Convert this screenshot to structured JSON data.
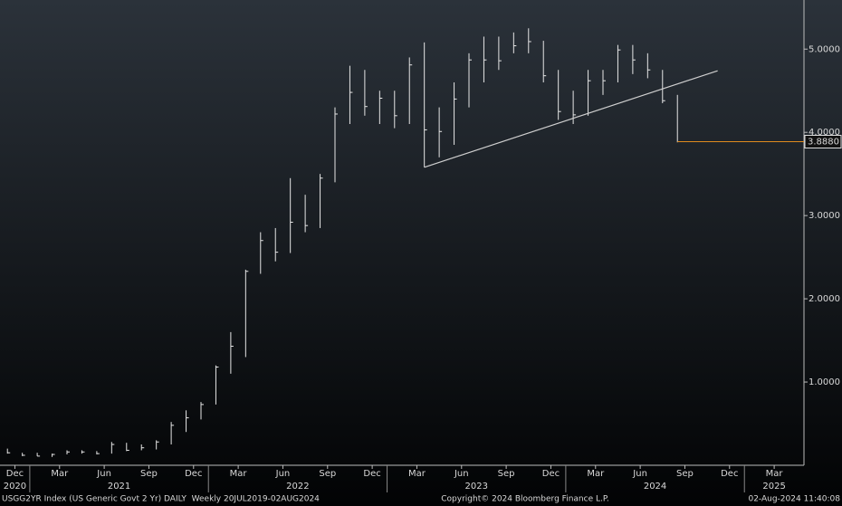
{
  "chart_data": {
    "type": "ohlc",
    "x": [
      "2020-11",
      "2020-12",
      "2021-01",
      "2021-02",
      "2021-03",
      "2021-04",
      "2021-05",
      "2021-06",
      "2021-07",
      "2021-08",
      "2021-09",
      "2021-10",
      "2021-11",
      "2021-12",
      "2022-01",
      "2022-02",
      "2022-03",
      "2022-04",
      "2022-05",
      "2022-06",
      "2022-07",
      "2022-08",
      "2022-09",
      "2022-10",
      "2022-11",
      "2022-12",
      "2023-01",
      "2023-02",
      "2023-03",
      "2023-04",
      "2023-05",
      "2023-06",
      "2023-07",
      "2023-08",
      "2023-09",
      "2023-10",
      "2023-11",
      "2023-12",
      "2024-01",
      "2024-02",
      "2024-03",
      "2024-04",
      "2024-05",
      "2024-06",
      "2024-07",
      "2024-08"
    ],
    "high": [
      0.2,
      0.15,
      0.15,
      0.14,
      0.18,
      0.18,
      0.17,
      0.28,
      0.27,
      0.25,
      0.3,
      0.52,
      0.66,
      0.76,
      1.2,
      1.6,
      2.35,
      2.8,
      2.85,
      3.45,
      3.25,
      3.5,
      4.3,
      4.8,
      4.75,
      4.5,
      4.5,
      4.9,
      5.08,
      4.3,
      4.6,
      4.95,
      5.15,
      5.15,
      5.2,
      5.25,
      5.1,
      4.75,
      4.5,
      4.75,
      4.75,
      5.05,
      5.05,
      4.95,
      4.75,
      4.45
    ],
    "low": [
      0.14,
      0.11,
      0.11,
      0.1,
      0.13,
      0.14,
      0.13,
      0.14,
      0.17,
      0.18,
      0.19,
      0.25,
      0.4,
      0.55,
      0.73,
      1.1,
      1.3,
      2.3,
      2.45,
      2.55,
      2.8,
      2.85,
      3.4,
      4.1,
      4.2,
      4.1,
      4.05,
      4.1,
      3.58,
      3.7,
      3.85,
      4.3,
      4.6,
      4.75,
      4.95,
      4.95,
      4.6,
      4.15,
      4.1,
      4.2,
      4.45,
      4.6,
      4.7,
      4.65,
      4.35,
      3.88
    ],
    "close": [
      0.15,
      0.12,
      0.11,
      0.13,
      0.16,
      0.16,
      0.14,
      0.25,
      0.18,
      0.21,
      0.28,
      0.48,
      0.57,
      0.73,
      1.18,
      1.43,
      2.33,
      2.7,
      2.56,
      2.92,
      2.88,
      3.45,
      4.22,
      4.48,
      4.31,
      4.41,
      4.2,
      4.81,
      4.03,
      4.01,
      4.4,
      4.87,
      4.87,
      4.86,
      5.04,
      5.09,
      4.68,
      4.25,
      4.21,
      4.62,
      4.62,
      4.99,
      4.87,
      4.75,
      4.38,
      3.888
    ],
    "color": "#e6e6e6",
    "trendline": {
      "x": [
        "2023-03",
        "2024-11"
      ],
      "values": [
        3.58,
        4.74
      ],
      "color": "#cfcfcf"
    },
    "last_value": {
      "value": 3.888,
      "label": "3.8880",
      "color": "#e08a1e"
    },
    "xlim": [
      "2020-11",
      "2025-05"
    ],
    "xticks": [
      {
        "value": "2020-12",
        "label": "Dec"
      },
      {
        "value": "2021-03",
        "label": "Mar"
      },
      {
        "value": "2021-06",
        "label": "Jun"
      },
      {
        "value": "2021-09",
        "label": "Sep"
      },
      {
        "value": "2021-12",
        "label": "Dec"
      },
      {
        "value": "2022-03",
        "label": "Mar"
      },
      {
        "value": "2022-06",
        "label": "Jun"
      },
      {
        "value": "2022-09",
        "label": "Sep"
      },
      {
        "value": "2022-12",
        "label": "Dec"
      },
      {
        "value": "2023-03",
        "label": "Mar"
      },
      {
        "value": "2023-06",
        "label": "Jun"
      },
      {
        "value": "2023-09",
        "label": "Sep"
      },
      {
        "value": "2023-12",
        "label": "Dec"
      },
      {
        "value": "2024-03",
        "label": "Mar"
      },
      {
        "value": "2024-06",
        "label": "Jun"
      },
      {
        "value": "2024-09",
        "label": "Sep"
      },
      {
        "value": "2024-12",
        "label": "Dec"
      },
      {
        "value": "2025-03",
        "label": "Mar"
      }
    ],
    "years": [
      "2020",
      "2021",
      "2022",
      "2023",
      "2024",
      "2025"
    ],
    "ylim": [
      0,
      5.59
    ],
    "yticks": [
      {
        "value": 1,
        "label": "1.0000"
      },
      {
        "value": 2,
        "label": "2.0000"
      },
      {
        "value": 3,
        "label": "3.0000"
      },
      {
        "value": 4,
        "label": "4.0000"
      },
      {
        "value": 5,
        "label": "5.0000"
      }
    ],
    "footer": {
      "left": "USGG2YR Index (US Generic Govt 2 Yr) DAILY  Weekly 20JUL2019-02AUG2024",
      "center": "Copyright© 2024 Bloomberg Finance L.P.",
      "right": "02-Aug-2024 11:40:08"
    }
  }
}
